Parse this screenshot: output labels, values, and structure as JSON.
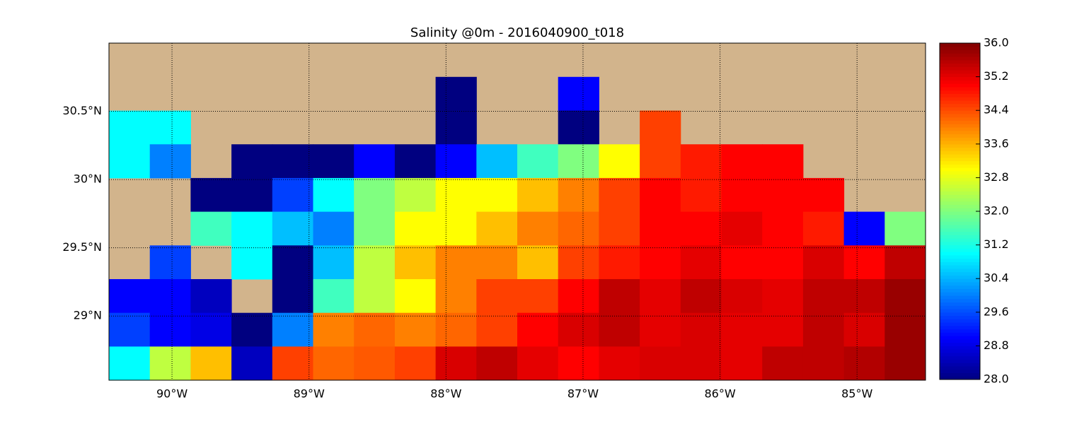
{
  "chart_data": {
    "type": "heatmap",
    "title": "Salinity @0m - 2016040900_t018",
    "xlim": [
      -90.46,
      -84.5
    ],
    "ylim": [
      28.53,
      31.0
    ],
    "xticks": [
      {
        "value": -90,
        "label": "90°W"
      },
      {
        "value": -89,
        "label": "89°W"
      },
      {
        "value": -88,
        "label": "88°W"
      },
      {
        "value": -87,
        "label": "87°W"
      },
      {
        "value": -86,
        "label": "86°W"
      },
      {
        "value": -85,
        "label": "85°W"
      }
    ],
    "yticks": [
      {
        "value": 29,
        "label": "29°N"
      },
      {
        "value": 29.5,
        "label": "29.5°N"
      },
      {
        "value": 30,
        "label": "30°N"
      },
      {
        "value": 30.5,
        "label": "30.5°N"
      }
    ],
    "grid": true,
    "land_color": "#d2b48c",
    "colormap": "jet",
    "zlim": [
      28.0,
      36.0
    ],
    "zticks": [
      {
        "value": 28,
        "label": "28.0"
      },
      {
        "value": 28.8,
        "label": "28.8"
      },
      {
        "value": 29.6,
        "label": "29.6"
      },
      {
        "value": 30.4,
        "label": "30.4"
      },
      {
        "value": 31.2,
        "label": "31.2"
      },
      {
        "value": 32,
        "label": "32.0"
      },
      {
        "value": 32.8,
        "label": "32.8"
      },
      {
        "value": 33.6,
        "label": "33.6"
      },
      {
        "value": 34.4,
        "label": "34.4"
      },
      {
        "value": 35.2,
        "label": "35.2"
      },
      {
        "value": 36,
        "label": "36.0"
      }
    ],
    "x": [
      -90.311,
      -90.013,
      -89.715,
      -89.417,
      -89.119,
      -88.821,
      -88.523,
      -88.225,
      -87.927,
      -87.629,
      -87.331,
      -87.033,
      -86.735,
      -86.437,
      -86.139,
      -85.841,
      -85.543,
      -85.245,
      -84.947,
      -84.649
    ],
    "y": [
      30.876,
      30.629,
      30.382,
      30.135,
      29.888,
      29.641,
      29.394,
      29.147,
      28.9,
      28.653
    ],
    "values": [
      [
        null,
        null,
        null,
        null,
        null,
        null,
        null,
        null,
        null,
        null,
        null,
        null,
        null,
        null,
        null,
        null,
        null,
        null,
        null,
        null
      ],
      [
        null,
        null,
        null,
        null,
        null,
        null,
        null,
        null,
        28,
        null,
        null,
        29,
        null,
        null,
        null,
        null,
        null,
        null,
        null,
        null
      ],
      [
        31,
        31,
        null,
        null,
        null,
        null,
        null,
        null,
        28,
        null,
        null,
        28,
        null,
        34.5,
        null,
        null,
        null,
        null,
        null,
        null
      ],
      [
        31,
        30,
        null,
        28,
        28,
        28,
        29,
        28,
        29,
        30.5,
        31.5,
        32,
        33,
        34.5,
        34.8,
        35,
        35,
        null,
        null,
        null
      ],
      [
        null,
        null,
        28,
        28,
        29.5,
        31,
        32,
        32.5,
        33,
        33,
        33.5,
        34,
        34.5,
        35,
        34.8,
        35,
        35,
        35,
        null,
        null
      ],
      [
        null,
        null,
        31.5,
        31,
        30.5,
        30,
        32,
        33,
        33,
        33.5,
        34,
        34.2,
        34.5,
        35,
        35,
        35.2,
        35,
        34.8,
        29,
        32
      ],
      [
        null,
        29.5,
        null,
        31,
        28,
        30.5,
        32.5,
        33.5,
        34,
        34,
        33.5,
        34.5,
        34.8,
        35,
        35.2,
        35,
        35,
        35.3,
        35,
        35.5
      ],
      [
        29,
        29,
        28.5,
        null,
        28,
        31.5,
        32.5,
        33,
        34,
        34.5,
        34.5,
        35,
        35.5,
        35.2,
        35.5,
        35.3,
        35.2,
        35.5,
        35.5,
        35.8
      ],
      [
        29.5,
        29,
        28.8,
        28,
        30,
        34,
        34.2,
        34,
        34.2,
        34.5,
        35,
        35.3,
        35.5,
        35.2,
        35.3,
        35.2,
        35.2,
        35.5,
        35.3,
        35.8
      ],
      [
        31,
        32.5,
        33.5,
        28.5,
        34.5,
        34.2,
        34.3,
        34.5,
        35.3,
        35.5,
        35.2,
        35,
        35.2,
        35.3,
        35.3,
        35.2,
        35.5,
        35.5,
        35.6,
        35.8
      ]
    ]
  }
}
